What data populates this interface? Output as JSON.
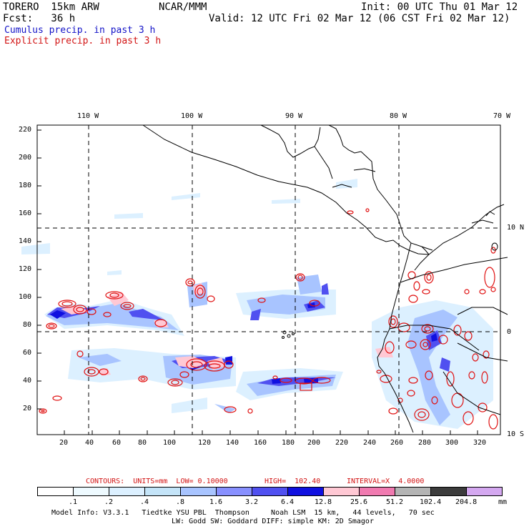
{
  "header": {
    "model": "TORERO  15km ARW",
    "org": "NCAR/MMM",
    "init": "Init: 00 UTC Thu 01 Mar 12",
    "fcst": "Fcst:   36 h",
    "valid": "Valid: 12 UTC Fri 02 Mar 12 (06 CST Fri 02 Mar 12)",
    "cumulus": "Cumulus precip. in past 3 h",
    "explicit": "Explicit precip. in past 3 h"
  },
  "axes": {
    "top_lon_labels": [
      "110 W",
      "100 W",
      "90 W",
      "80 W",
      "70 W"
    ],
    "right_lat_labels": [
      "10 N",
      "0",
      "10 S"
    ],
    "y_ticks": [
      "220",
      "200",
      "180",
      "160",
      "140",
      "120",
      "100",
      "80",
      "60",
      "40",
      "20"
    ],
    "x_ticks": [
      "20",
      "40",
      "60",
      "80",
      "100",
      "120",
      "140",
      "160",
      "180",
      "200",
      "220",
      "240",
      "260",
      "280",
      "300",
      "320"
    ]
  },
  "contour_info": {
    "contours": "CONTOURS:  UNITS=mm  LOW= 0.10000",
    "high": "HIGH=  102.40",
    "interval": "INTERVAL=X  4.0000"
  },
  "colorbar": {
    "units": "mm",
    "levels": [
      ".1",
      ".2",
      ".4",
      ".8",
      "1.6",
      "3.2",
      "6.4",
      "12.8",
      "25.6",
      "51.2",
      "102.4",
      "204.8"
    ],
    "colors": [
      "#ffffff",
      "#eefaff",
      "#dcf0ff",
      "#c4e4f8",
      "#a8c4ff",
      "#8890ff",
      "#5050f0",
      "#1010e0",
      "#ffc8d4",
      "#f07ab0",
      "#b4b4b4",
      "#3c3c3c",
      "#d4a8f0"
    ]
  },
  "footer": {
    "line1": "Model Info: V3.3.1   Tiedtke YSU PBL  Thompson     Noah LSM  15 km,   44 levels,   70 sec",
    "line2": "LW: Godd SW: Goddard DIFF: simple KM: 2D Smagor"
  },
  "map_colors": {
    "light": "#dcf0ff",
    "lightblue": "#a8c4ff",
    "medium": "#5050f0",
    "dark": "#1010e0",
    "pink": "#ffc8d4",
    "contour": "#e01010"
  }
}
